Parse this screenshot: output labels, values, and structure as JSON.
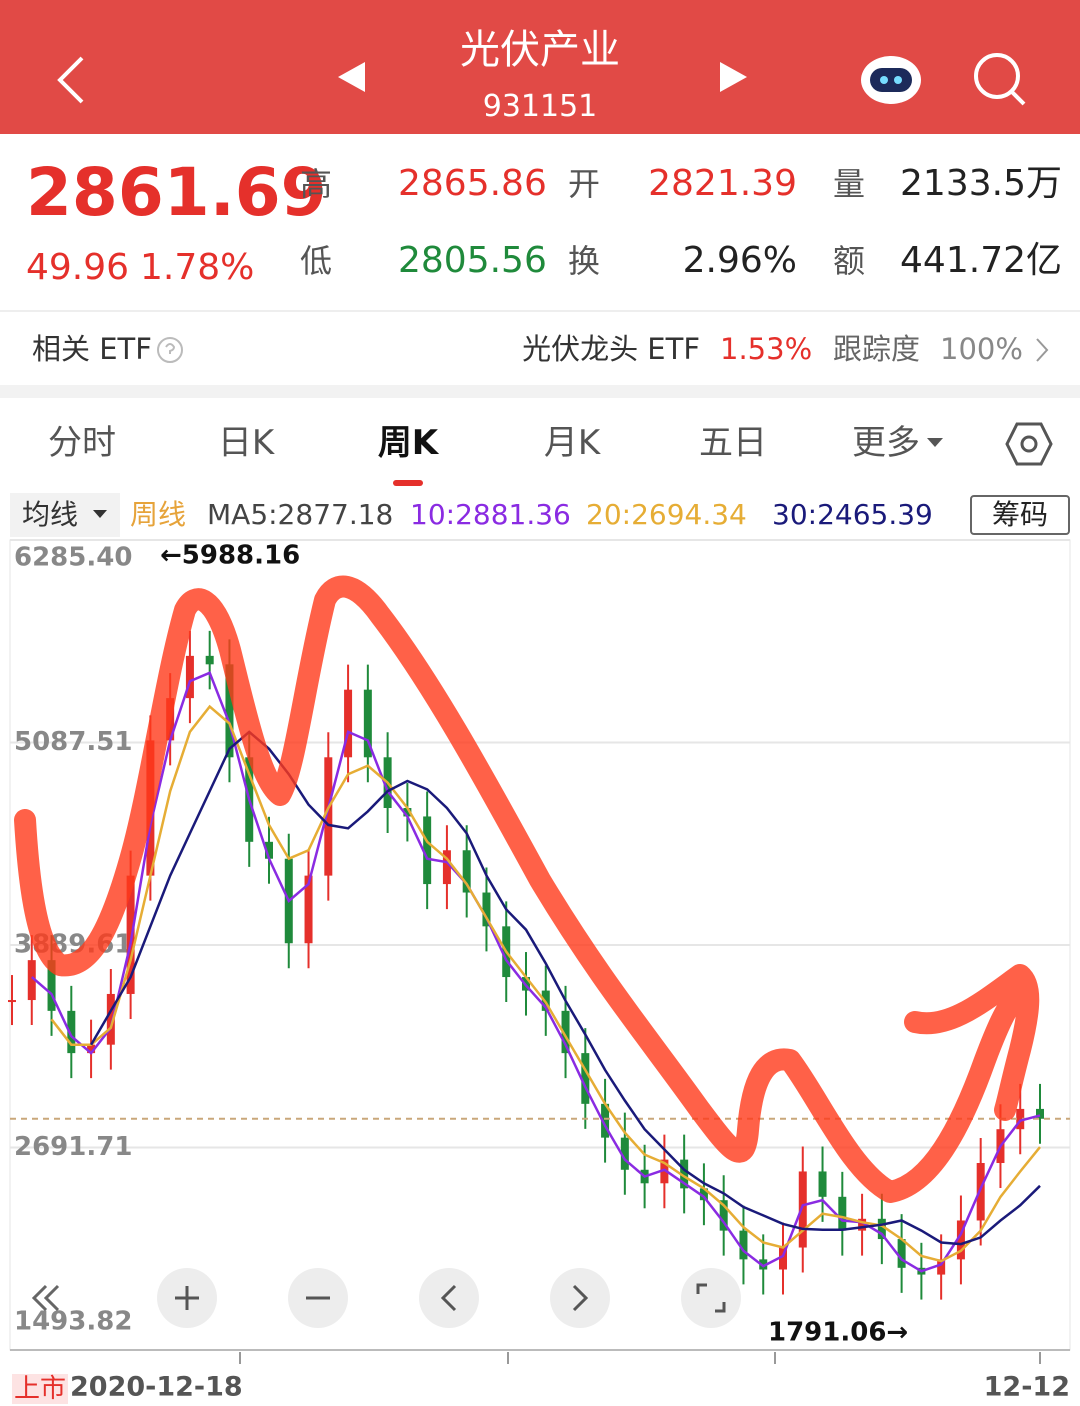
{
  "header": {
    "title": "光伏产业",
    "code": "931151"
  },
  "quote": {
    "price": "2861.69",
    "change": "49.96",
    "change_pct": "1.78%",
    "fields": [
      {
        "label": "高",
        "value": "2865.86"
      },
      {
        "label": "开",
        "value": "2821.39"
      },
      {
        "label": "量",
        "value": "2133.5万"
      },
      {
        "label": "低",
        "value": "2805.56"
      },
      {
        "label": "换",
        "value": "2.96%"
      },
      {
        "label": "额",
        "value": "441.72亿"
      }
    ]
  },
  "etf": {
    "label": "相关 ETF",
    "name": "光伏龙头 ETF",
    "change": "1.53%",
    "track_label": "跟踪度",
    "track": "100%"
  },
  "tabs": [
    "分时",
    "日K",
    "周K",
    "月K",
    "五日",
    "更多"
  ],
  "ma_bar": {
    "selector": "均线",
    "period": "周线",
    "items": [
      "MA5:2877.18",
      "10:2881.36",
      "20:2694.34",
      "30:2465.39"
    ],
    "chip": "筹码"
  },
  "chart_data": {
    "type": "candlestick",
    "up_color": "#e5302b",
    "down_color": "#1f8a3b",
    "categories": [
      "2020-12-18",
      null,
      null,
      null,
      null,
      null,
      null,
      null,
      null,
      null,
      null,
      null,
      null,
      null,
      null,
      null,
      null,
      null,
      null,
      null,
      null,
      null,
      null,
      null,
      null,
      null,
      null,
      null,
      null,
      null,
      null,
      null,
      null,
      null,
      null,
      null,
      null,
      null,
      null,
      null,
      null,
      null,
      null,
      null,
      null,
      null,
      null,
      null,
      null,
      null,
      null,
      null,
      "12-12"
    ],
    "listing_label": "上市",
    "values": [
      3564,
      3800,
      3500,
      3250,
      3300,
      3600,
      4300,
      5100,
      5350,
      5600,
      5550,
      5000,
      4500,
      4400,
      3900,
      4300,
      5000,
      5400,
      5000,
      4700,
      4650,
      4250,
      4450,
      4200,
      4000,
      3700,
      3620,
      3500,
      3250,
      2950,
      2750,
      2560,
      2480,
      2620,
      2450,
      2380,
      2200,
      2030,
      1970,
      2100,
      2550,
      2400,
      2200,
      2270,
      2150,
      1980,
      1940,
      2030,
      2260,
      2600,
      2800,
      2920,
      2861.69
    ],
    "series": [
      {
        "color": "#8a2be2",
        "values": [
          null,
          3700,
          3600,
          3350,
          3250,
          3400,
          3900,
          4600,
          5100,
          5450,
          5500,
          5200,
          4750,
          4400,
          4150,
          4250,
          4700,
          5150,
          5100,
          4800,
          4650,
          4400,
          4380,
          4250,
          4050,
          3800,
          3650,
          3520,
          3300,
          3050,
          2820,
          2620,
          2520,
          2560,
          2480,
          2400,
          2250,
          2080,
          1990,
          2050,
          2350,
          2380,
          2260,
          2250,
          2180,
          2030,
          1960,
          2000,
          2180,
          2450,
          2700,
          2850,
          2881.36
        ]
      },
      {
        "color": "#e6ad35",
        "values": [
          null,
          null,
          3450,
          3300,
          3300,
          3400,
          3800,
          4300,
          4800,
          5150,
          5300,
          5200,
          4900,
          4600,
          4400,
          4450,
          4700,
          4900,
          4950,
          4850,
          4700,
          4500,
          4400,
          4250,
          4050,
          3850,
          3700,
          3550,
          3350,
          3150,
          2950,
          2780,
          2650,
          2600,
          2520,
          2450,
          2350,
          2220,
          2130,
          2100,
          2200,
          2300,
          2280,
          2250,
          2230,
          2150,
          2050,
          2020,
          2080,
          2200,
          2400,
          2550,
          2694.34
        ]
      },
      {
        "color": "#1a1a7a",
        "values": [
          null,
          null,
          null,
          null,
          3300,
          3500,
          3700,
          4000,
          4300,
          4550,
          4800,
          5050,
          5150,
          5050,
          4900,
          4720,
          4600,
          4580,
          4680,
          4800,
          4860,
          4810,
          4700,
          4550,
          4300,
          4100,
          3980,
          3780,
          3560,
          3360,
          3150,
          2970,
          2800,
          2680,
          2560,
          2480,
          2420,
          2340,
          2290,
          2240,
          2210,
          2205,
          2205,
          2220,
          2235,
          2260,
          2200,
          2130,
          2120,
          2160,
          2260,
          2350,
          2465.39
        ]
      }
    ],
    "ylim": [
      1493.82,
      6285.4
    ],
    "yticks": [
      {
        "value": 6285.4,
        "label": "6285.40"
      },
      {
        "value": 5087.51,
        "label": "5087.51"
      },
      {
        "value": 3889.61,
        "label": "3889.61"
      },
      {
        "value": 2691.71,
        "label": "2691.71"
      },
      {
        "value": 1493.82,
        "label": "1493.82"
      }
    ],
    "grid": true,
    "annotations": [
      "←5988.16",
      "1791.06→"
    ]
  }
}
